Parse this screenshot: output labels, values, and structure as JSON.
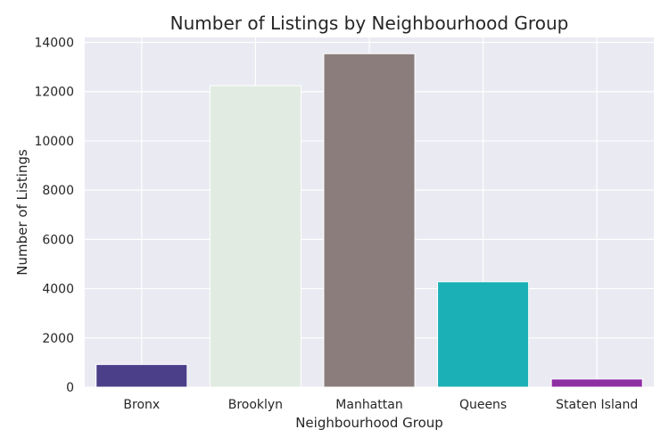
{
  "chart_data": {
    "type": "bar",
    "title": "Number of Listings by Neighbourhood Group",
    "xlabel": "Neighbourhood Group",
    "ylabel": "Number of Listings",
    "categories": [
      "Bronx",
      "Brooklyn",
      "Manhattan",
      "Queens",
      "Staten Island"
    ],
    "values": [
      919,
      12240,
      13540,
      4280,
      330
    ],
    "colors": [
      "#4b3f8a",
      "#e1ebe2",
      "#8a7d7b",
      "#1ab0b6",
      "#8e2ea3"
    ],
    "ylim": [
      0,
      14200
    ],
    "yticks": [
      0,
      2000,
      4000,
      6000,
      8000,
      10000,
      12000,
      14000
    ],
    "grid": true,
    "background": "#eaeaf2",
    "legend": "none"
  }
}
